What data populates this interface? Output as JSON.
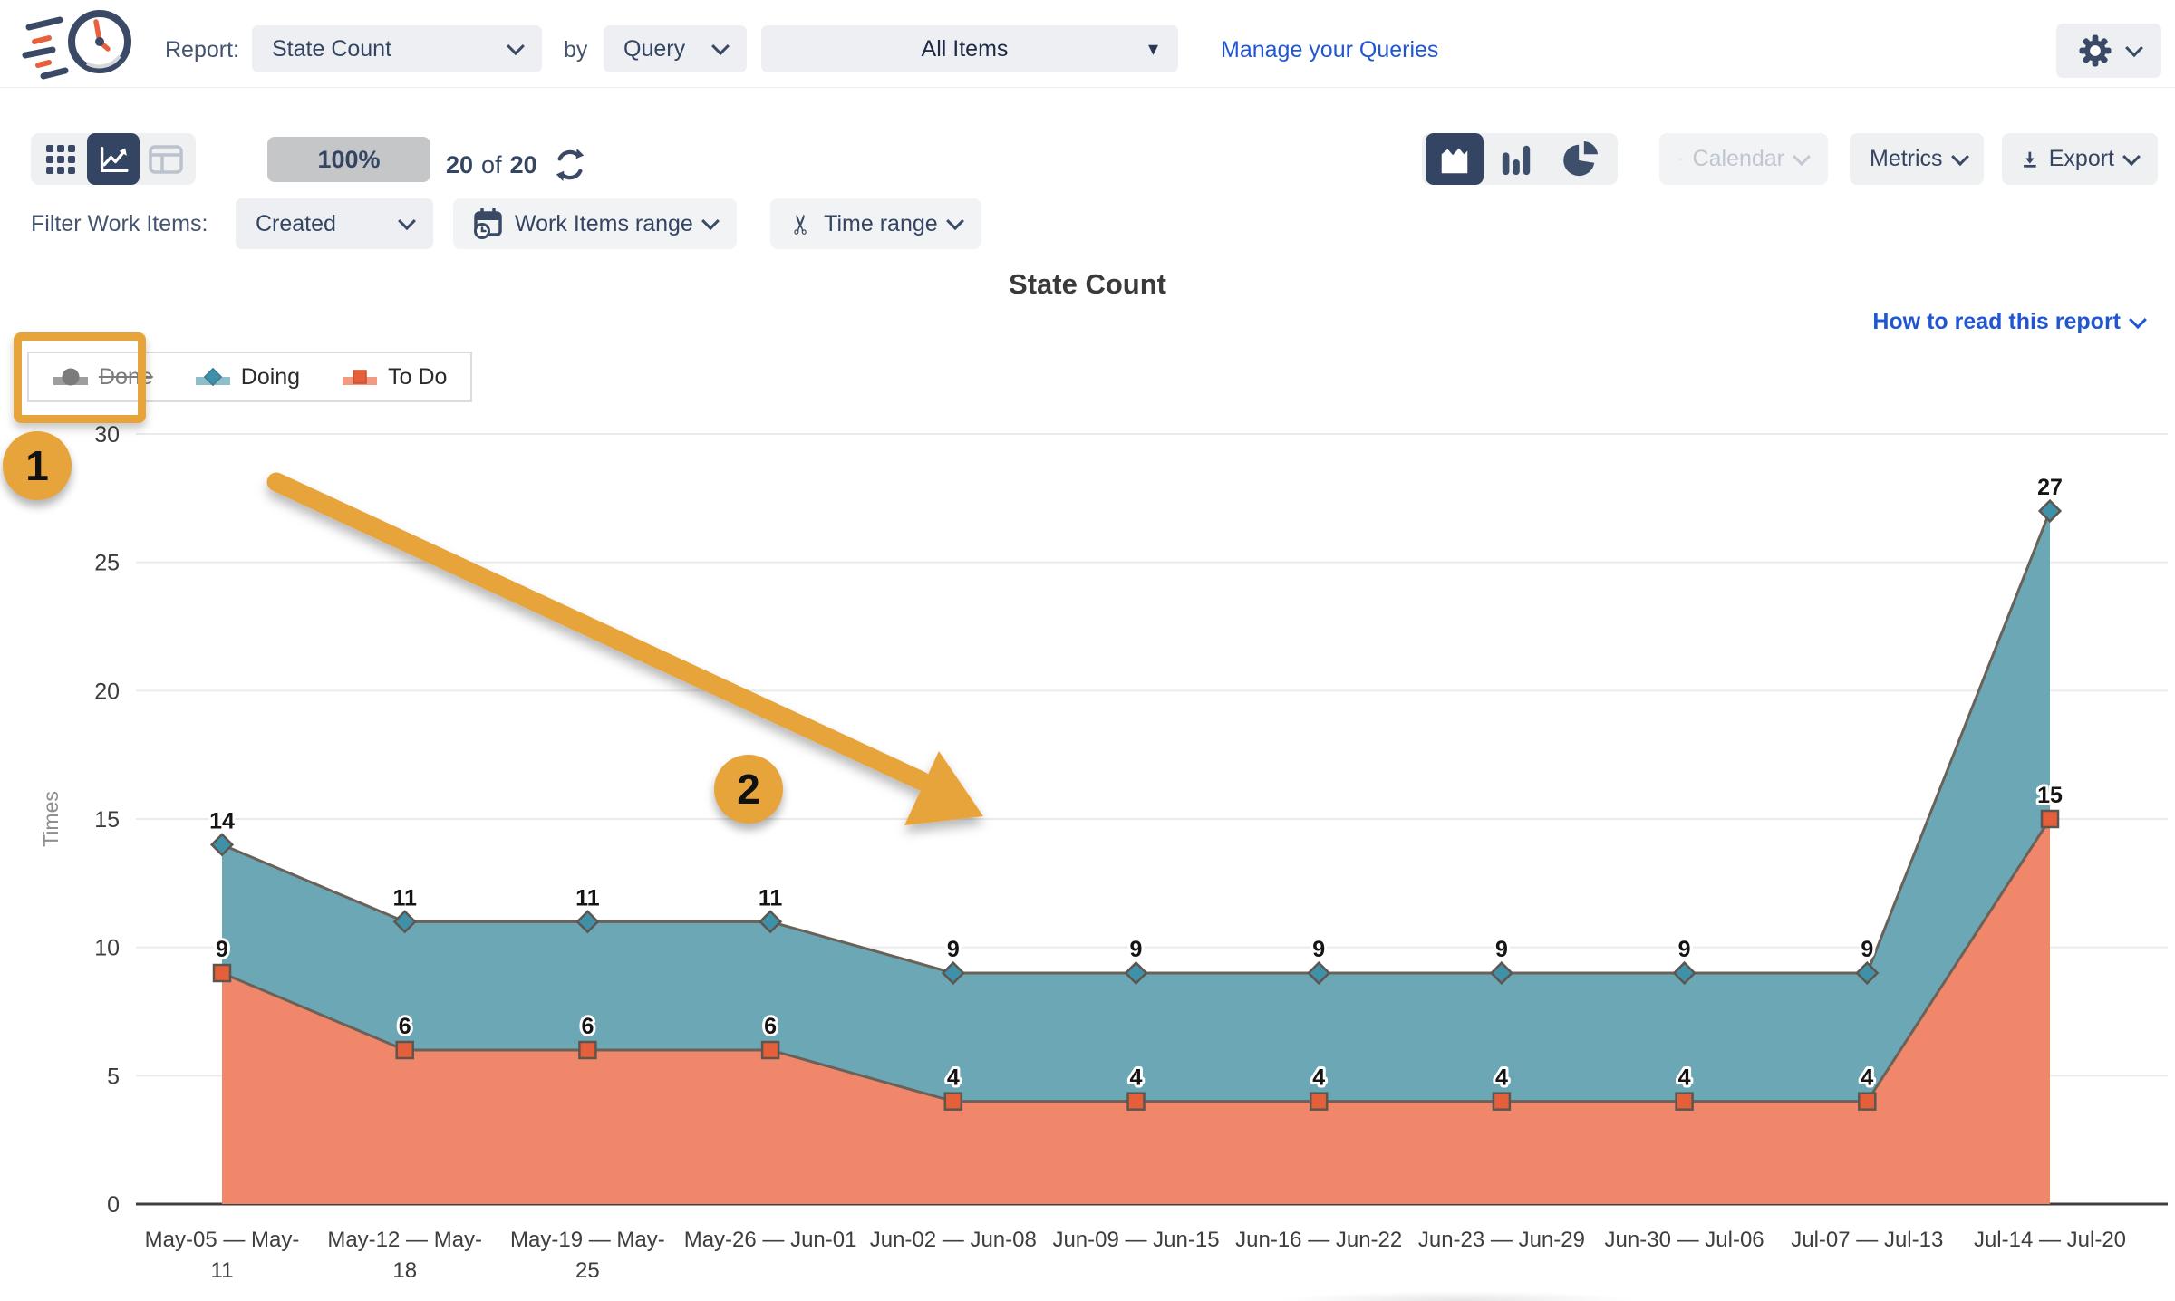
{
  "header": {
    "report_label": "Report:",
    "report_value": "State Count",
    "by_label": "by",
    "query_value": "Query",
    "items_value": "All Items",
    "manage_link": "Manage your Queries"
  },
  "toolbar": {
    "progress": "100%",
    "count_current": "20",
    "count_of": "of",
    "count_total": "20",
    "calendar_label": "Calendar",
    "metrics_label": "Metrics",
    "export_label": "Export"
  },
  "filters": {
    "label": "Filter Work Items:",
    "created_value": "Created",
    "work_items_range_label": "Work Items range",
    "time_range_label": "Time range"
  },
  "report": {
    "title": "State Count",
    "help_link": "How to read this report"
  },
  "legend": [
    {
      "label": "Done",
      "marker": "circle",
      "color": "#7B7B7B",
      "band": "#9E9E9E",
      "disabled": true
    },
    {
      "label": "Doing",
      "marker": "diamond",
      "color": "#3F90A9",
      "band": "#8FBECB",
      "disabled": false
    },
    {
      "label": "To Do",
      "marker": "square",
      "color": "#E55F3A",
      "band": "#F29B80",
      "disabled": false
    }
  ],
  "annotations": {
    "badge1": "1",
    "badge2": "2",
    "highlight_color": "#E7A43B"
  },
  "chart_data": {
    "type": "area",
    "title": "State Count",
    "xlabel": "",
    "ylabel": "Times",
    "ylim": [
      0,
      30
    ],
    "ytick_step": 5,
    "grid": true,
    "legend_position": "top-left",
    "categories": [
      "May-05 — May-11",
      "May-12 — May-18",
      "May-19 — May-25",
      "May-26 — Jun-01",
      "Jun-02 — Jun-08",
      "Jun-09 — Jun-15",
      "Jun-16 — Jun-22",
      "Jun-23 — Jun-29",
      "Jun-30 — Jul-06",
      "Jul-07 — Jul-13",
      "Jul-14 — Jul-20"
    ],
    "series": [
      {
        "name": "Doing",
        "marker": "diamond",
        "area_color": "#6CA7B6",
        "marker_color": "#3F90A9",
        "values": [
          14,
          11,
          11,
          11,
          9,
          9,
          9,
          9,
          9,
          9,
          27
        ]
      },
      {
        "name": "To Do",
        "marker": "square",
        "area_color": "#F0876A",
        "marker_color": "#E55F3A",
        "values": [
          9,
          6,
          6,
          6,
          4,
          4,
          4,
          4,
          4,
          4,
          15
        ]
      }
    ],
    "line_color": "#6A6258",
    "disabled_series": [
      "Done"
    ]
  }
}
